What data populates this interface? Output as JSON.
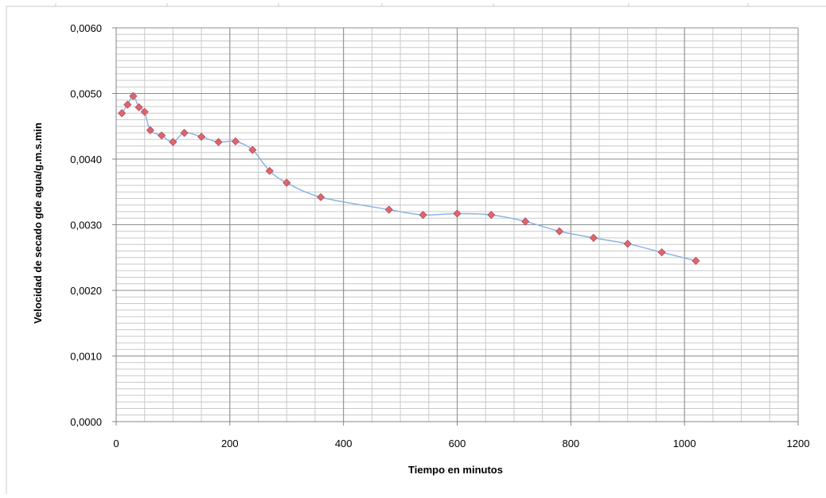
{
  "chart_data": {
    "type": "line",
    "title": "",
    "xlabel": "Tiempo en minutos",
    "ylabel": "Velocidad de secado gde agua/g.m.s.min",
    "xlim": [
      0,
      1200
    ],
    "ylim": [
      0,
      0.006
    ],
    "x_ticks": [
      "0",
      "200",
      "400",
      "600",
      "800",
      "1000",
      "1200"
    ],
    "y_ticks": [
      "0,0000",
      "0,0010",
      "0,0020",
      "0,0030",
      "0,0040",
      "0,0050",
      "0,0060"
    ],
    "grid": true,
    "legend": "none",
    "series": [
      {
        "line_color": "#8db4e2",
        "marker_color": "#e06666",
        "marker": "diamond",
        "smooth": true,
        "x": [
          10,
          20,
          30,
          40,
          50,
          60,
          80,
          100,
          120,
          150,
          180,
          210,
          240,
          270,
          300,
          360,
          480,
          540,
          600,
          660,
          720,
          780,
          840,
          900,
          960,
          1020
        ],
        "y": [
          0.0047,
          0.00483,
          0.00496,
          0.00479,
          0.00472,
          0.00444,
          0.00436,
          0.00426,
          0.0044,
          0.00434,
          0.00426,
          0.00427,
          0.00414,
          0.00382,
          0.00364,
          0.00342,
          0.00323,
          0.00315,
          0.00317,
          0.00315,
          0.00305,
          0.0029,
          0.0028,
          0.00271,
          0.00258,
          0.00245
        ]
      }
    ]
  }
}
